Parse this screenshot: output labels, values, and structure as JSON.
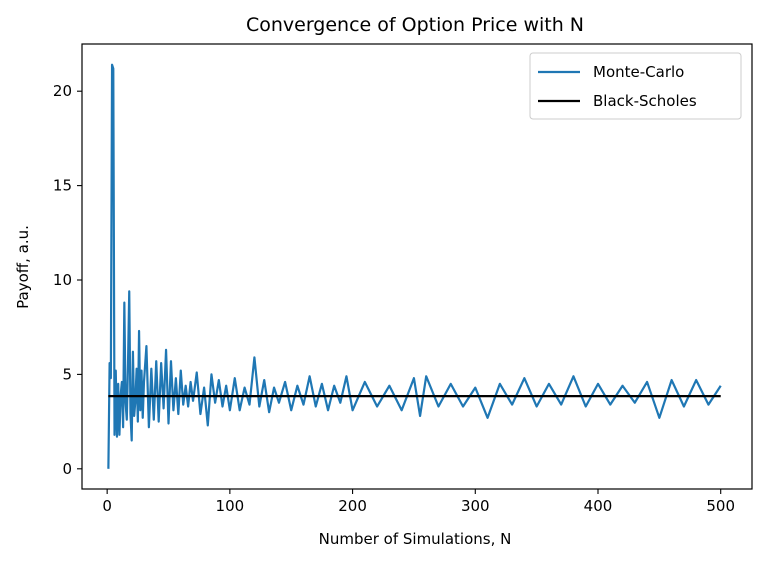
{
  "chart_data": {
    "type": "line",
    "title": "Convergence of Option Price with N",
    "xlabel": "Number of Simulations, N",
    "ylabel": "Payoff, a.u.",
    "xlim": [
      -20.5,
      525.5
    ],
    "ylim": [
      -1.07,
      22.5
    ],
    "xticks": [
      0,
      100,
      200,
      300,
      400,
      500
    ],
    "yticks": [
      0,
      5,
      10,
      15,
      20
    ],
    "grid": false,
    "legend_position": "top-right",
    "series": [
      {
        "name": "Monte-Carlo",
        "color": "#1f77b4",
        "style": "noisy convergence",
        "x": [
          1,
          2,
          3,
          4,
          5,
          6,
          7,
          8,
          9,
          10,
          11,
          12,
          13,
          14,
          15,
          16,
          17,
          18,
          19,
          20,
          21,
          22,
          23,
          24,
          25,
          26,
          27,
          28,
          29,
          30,
          32,
          34,
          36,
          38,
          40,
          42,
          44,
          46,
          48,
          50,
          52,
          54,
          56,
          58,
          60,
          62,
          64,
          66,
          68,
          70,
          73,
          76,
          79,
          82,
          85,
          88,
          91,
          94,
          97,
          100,
          104,
          108,
          112,
          116,
          120,
          124,
          128,
          132,
          136,
          140,
          145,
          150,
          155,
          160,
          165,
          170,
          175,
          180,
          185,
          190,
          195,
          200,
          210,
          220,
          230,
          240,
          250,
          255,
          260,
          270,
          280,
          290,
          300,
          310,
          320,
          330,
          340,
          350,
          360,
          370,
          380,
          390,
          400,
          410,
          420,
          430,
          440,
          450,
          460,
          470,
          480,
          490,
          500
        ],
        "y": [
          0.0,
          5.6,
          4.8,
          21.4,
          21.2,
          1.8,
          5.2,
          1.7,
          4.5,
          1.8,
          3.9,
          4.6,
          2.2,
          8.8,
          3.5,
          2.6,
          5.6,
          9.4,
          2.9,
          1.5,
          6.2,
          2.8,
          3.6,
          5.3,
          2.5,
          7.3,
          3.1,
          5.2,
          2.7,
          4.6,
          6.5,
          2.2,
          5.3,
          2.6,
          5.7,
          2.5,
          5.6,
          3.2,
          6.3,
          2.4,
          5.7,
          3.1,
          4.8,
          2.9,
          5.2,
          3.4,
          4.4,
          3.3,
          4.6,
          3.6,
          5.1,
          2.9,
          4.3,
          2.3,
          5.0,
          3.5,
          4.7,
          3.3,
          4.4,
          3.1,
          4.8,
          3.1,
          4.3,
          3.4,
          5.9,
          3.3,
          4.7,
          3.0,
          4.3,
          3.5,
          4.6,
          3.1,
          4.4,
          3.4,
          4.9,
          3.3,
          4.5,
          3.1,
          4.4,
          3.5,
          4.9,
          3.1,
          4.6,
          3.3,
          4.4,
          3.1,
          4.8,
          2.8,
          4.9,
          3.3,
          4.5,
          3.3,
          4.3,
          2.7,
          4.5,
          3.4,
          4.8,
          3.3,
          4.5,
          3.4,
          4.9,
          3.3,
          4.5,
          3.4,
          4.4,
          3.5,
          4.6,
          2.7,
          4.7,
          3.3,
          4.7,
          3.4,
          4.4
        ]
      },
      {
        "name": "Black-Scholes",
        "color": "#000000",
        "x": [
          1,
          500
        ],
        "y": [
          3.85,
          3.85
        ]
      }
    ]
  }
}
